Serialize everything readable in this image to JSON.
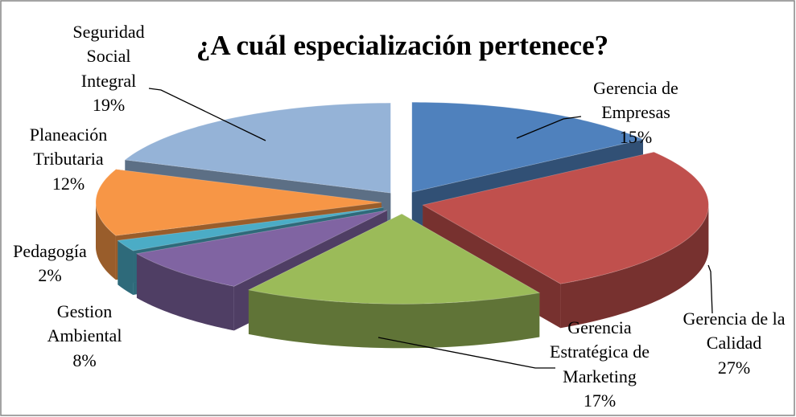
{
  "chart_data": {
    "type": "pie",
    "title": "¿A cuál especialización pertenece?",
    "categories": [
      "Gerencia de Empresas",
      "Gerencia de la Calidad",
      "Gerencia Estratégica de Marketing",
      "Gestion Ambiental",
      "Pedagogía",
      "Planeación Tributaria",
      "Seguridad Social Integral"
    ],
    "values": [
      15,
      27,
      17,
      8,
      2,
      12,
      19
    ],
    "value_labels": [
      "15%",
      "27%",
      "17%",
      "8%",
      "2%",
      "12%",
      "19%"
    ],
    "colors": [
      "#4f81bd",
      "#c0504d",
      "#9bbb59",
      "#8064a2",
      "#4bacc6",
      "#f79646",
      "#95b3d7"
    ]
  }
}
